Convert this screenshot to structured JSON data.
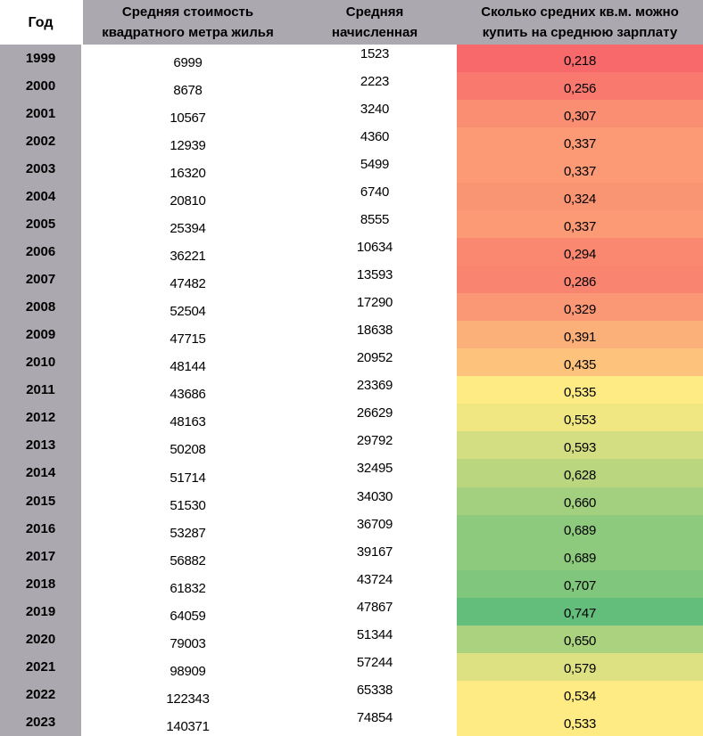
{
  "colors": {
    "header_bg": "#aba8b0",
    "year_header_bg": "#ffffff",
    "year_col_bg": "#aba8b0",
    "text": "#000000",
    "heatmap_min": "#f8696b",
    "heatmap_mid": "#ffeb84",
    "heatmap_max": "#63be7b"
  },
  "table": {
    "columns": [
      {
        "key": "year",
        "label": "Год"
      },
      {
        "key": "price",
        "label": "Средняя стоимость\nквадратного метра жилья"
      },
      {
        "key": "salary",
        "label": "Средняя\nначисленная"
      },
      {
        "key": "ratio",
        "label": "Сколько средних кв.м. можно\nкупить на среднюю зарплату"
      }
    ],
    "rows": [
      {
        "year": "1999",
        "price": "6999",
        "salary": "1523",
        "ratio": "0,218",
        "ratio_color": "#f8696b"
      },
      {
        "year": "2000",
        "price": "8678",
        "salary": "2223",
        "ratio": "0,256",
        "ratio_color": "#f9796e"
      },
      {
        "year": "2001",
        "price": "10567",
        "salary": "3240",
        "ratio": "0,307",
        "ratio_color": "#fa8e72"
      },
      {
        "year": "2002",
        "price": "12939",
        "salary": "4360",
        "ratio": "0,337",
        "ratio_color": "#fb9a74"
      },
      {
        "year": "2003",
        "price": "16320",
        "salary": "5499",
        "ratio": "0,337",
        "ratio_color": "#fb9a74"
      },
      {
        "year": "2004",
        "price": "20810",
        "salary": "6740",
        "ratio": "0,324",
        "ratio_color": "#fa9573"
      },
      {
        "year": "2005",
        "price": "25394",
        "salary": "8555",
        "ratio": "0,337",
        "ratio_color": "#fb9a74"
      },
      {
        "year": "2006",
        "price": "36221",
        "salary": "10634",
        "ratio": "0,294",
        "ratio_color": "#fa8871"
      },
      {
        "year": "2007",
        "price": "47482",
        "salary": "13593",
        "ratio": "0,286",
        "ratio_color": "#f98570"
      },
      {
        "year": "2008",
        "price": "52504",
        "salary": "17290",
        "ratio": "0,329",
        "ratio_color": "#fa9774"
      },
      {
        "year": "2009",
        "price": "47715",
        "salary": "18638",
        "ratio": "0,391",
        "ratio_color": "#fcb079"
      },
      {
        "year": "2010",
        "price": "48144",
        "salary": "20952",
        "ratio": "0,435",
        "ratio_color": "#fdc37c"
      },
      {
        "year": "2011",
        "price": "43686",
        "salary": "23369",
        "ratio": "0,535",
        "ratio_color": "#feeb84"
      },
      {
        "year": "2012",
        "price": "48163",
        "salary": "26629",
        "ratio": "0,553",
        "ratio_color": "#f0e783"
      },
      {
        "year": "2013",
        "price": "50208",
        "salary": "29792",
        "ratio": "0,593",
        "ratio_color": "#d3de82"
      },
      {
        "year": "2014",
        "price": "51714",
        "salary": "32495",
        "ratio": "0,628",
        "ratio_color": "#bad780"
      },
      {
        "year": "2015",
        "price": "51530",
        "salary": "34030",
        "ratio": "0,660",
        "ratio_color": "#a2d07f"
      },
      {
        "year": "2016",
        "price": "53287",
        "salary": "36709",
        "ratio": "0,689",
        "ratio_color": "#8dca7d"
      },
      {
        "year": "2017",
        "price": "56882",
        "salary": "39167",
        "ratio": "0,689",
        "ratio_color": "#8dca7d"
      },
      {
        "year": "2018",
        "price": "61832",
        "salary": "43724",
        "ratio": "0,707",
        "ratio_color": "#80c67d"
      },
      {
        "year": "2019",
        "price": "64059",
        "salary": "47867",
        "ratio": "0,747",
        "ratio_color": "#63be7b"
      },
      {
        "year": "2020",
        "price": "79003",
        "salary": "51344",
        "ratio": "0,650",
        "ratio_color": "#aad27f"
      },
      {
        "year": "2021",
        "price": "98909",
        "salary": "57244",
        "ratio": "0,579",
        "ratio_color": "#dee182"
      },
      {
        "year": "2022",
        "price": "122343",
        "salary": "65338",
        "ratio": "0,534",
        "ratio_color": "#feeb84"
      },
      {
        "year": "2023",
        "price": "140371",
        "salary": "74854",
        "ratio": "0,533",
        "ratio_color": "#ffeb84"
      }
    ]
  },
  "chart_data": {
    "type": "table",
    "title": "",
    "columns": [
      "Год",
      "Средняя стоимость квадратного метра жилья",
      "Средняя начисленная",
      "Сколько средних кв.м. можно купить на среднюю зарплату"
    ],
    "x": [
      1999,
      2000,
      2001,
      2002,
      2003,
      2004,
      2005,
      2006,
      2007,
      2008,
      2009,
      2010,
      2011,
      2012,
      2013,
      2014,
      2015,
      2016,
      2017,
      2018,
      2019,
      2020,
      2021,
      2022,
      2023
    ],
    "series": [
      {
        "name": "Средняя стоимость квадратного метра жилья",
        "values": [
          6999,
          8678,
          10567,
          12939,
          16320,
          20810,
          25394,
          36221,
          47482,
          52504,
          47715,
          48144,
          43686,
          48163,
          50208,
          51714,
          51530,
          53287,
          56882,
          61832,
          64059,
          79003,
          98909,
          122343,
          140371
        ]
      },
      {
        "name": "Средняя начисленная",
        "values": [
          1523,
          2223,
          3240,
          4360,
          5499,
          6740,
          8555,
          10634,
          13593,
          17290,
          18638,
          20952,
          23369,
          26629,
          29792,
          32495,
          34030,
          36709,
          39167,
          43724,
          47867,
          51344,
          57244,
          65338,
          74854
        ]
      },
      {
        "name": "Сколько средних кв.м. можно купить на среднюю зарплату",
        "values": [
          0.218,
          0.256,
          0.307,
          0.337,
          0.337,
          0.324,
          0.337,
          0.294,
          0.286,
          0.329,
          0.391,
          0.435,
          0.535,
          0.553,
          0.593,
          0.628,
          0.66,
          0.689,
          0.689,
          0.707,
          0.747,
          0.65,
          0.579,
          0.534,
          0.533
        ]
      }
    ],
    "heatmap_column": "Сколько средних кв.м. можно купить на среднюю зарплату",
    "heatmap_scale": {
      "min_value": 0.218,
      "min_color": "#f8696b",
      "mid_value": 0.533,
      "mid_color": "#ffeb84",
      "max_value": 0.747,
      "max_color": "#63be7b"
    },
    "legend_position": "none",
    "grid": false
  }
}
